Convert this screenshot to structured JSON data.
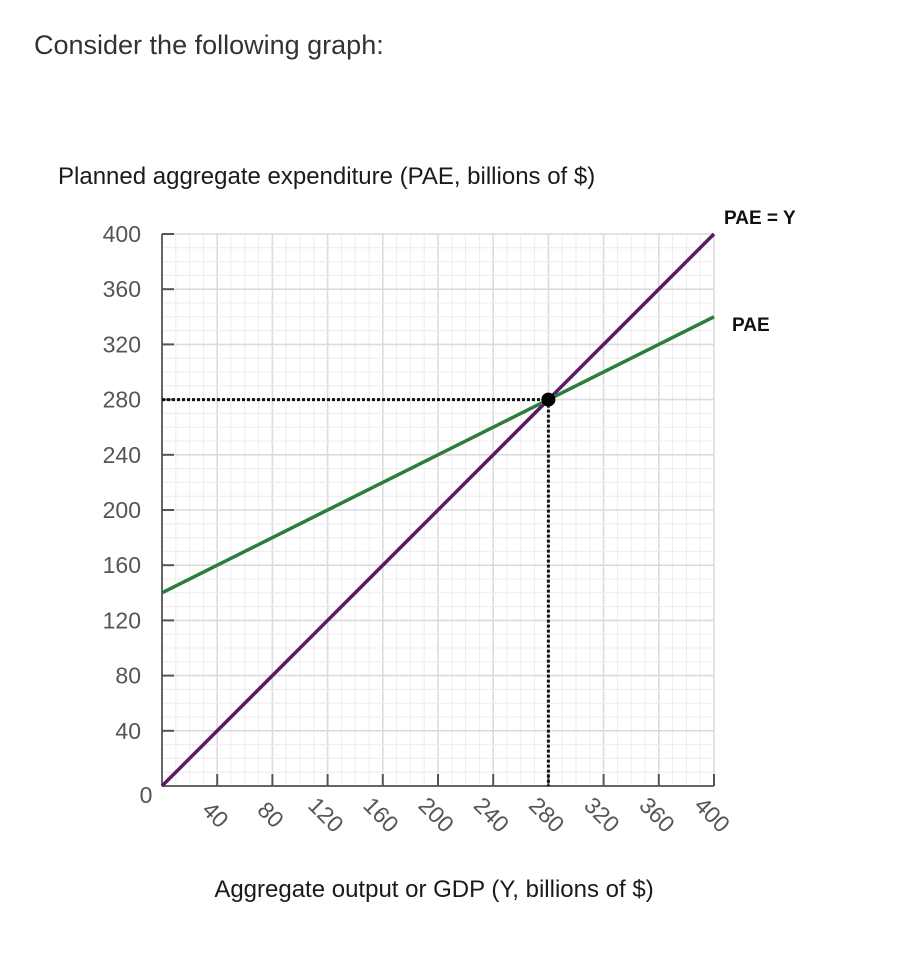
{
  "question": "Consider the following graph:",
  "chart_data": {
    "type": "line",
    "ylabel": "Planned aggregate expenditure (PAE, billions of $)",
    "xlabel": "Aggregate output or GDP (Y, billions of $)",
    "xlim": [
      0,
      400
    ],
    "ylim": [
      0,
      400
    ],
    "grid": true,
    "origin_label": "0",
    "x_ticks": [
      40,
      80,
      120,
      160,
      200,
      240,
      280,
      320,
      360,
      400
    ],
    "y_ticks": [
      40,
      80,
      120,
      160,
      200,
      240,
      280,
      320,
      360,
      400
    ],
    "series": [
      {
        "name": "PAE = Y",
        "color": "#5b1a63",
        "x": [
          0,
          400
        ],
        "y": [
          0,
          400
        ]
      },
      {
        "name": "PAE",
        "color": "#2f7a3d",
        "x": [
          0,
          400
        ],
        "y": [
          140,
          340
        ]
      }
    ],
    "equilibrium": {
      "x": 280,
      "y": 280
    }
  }
}
